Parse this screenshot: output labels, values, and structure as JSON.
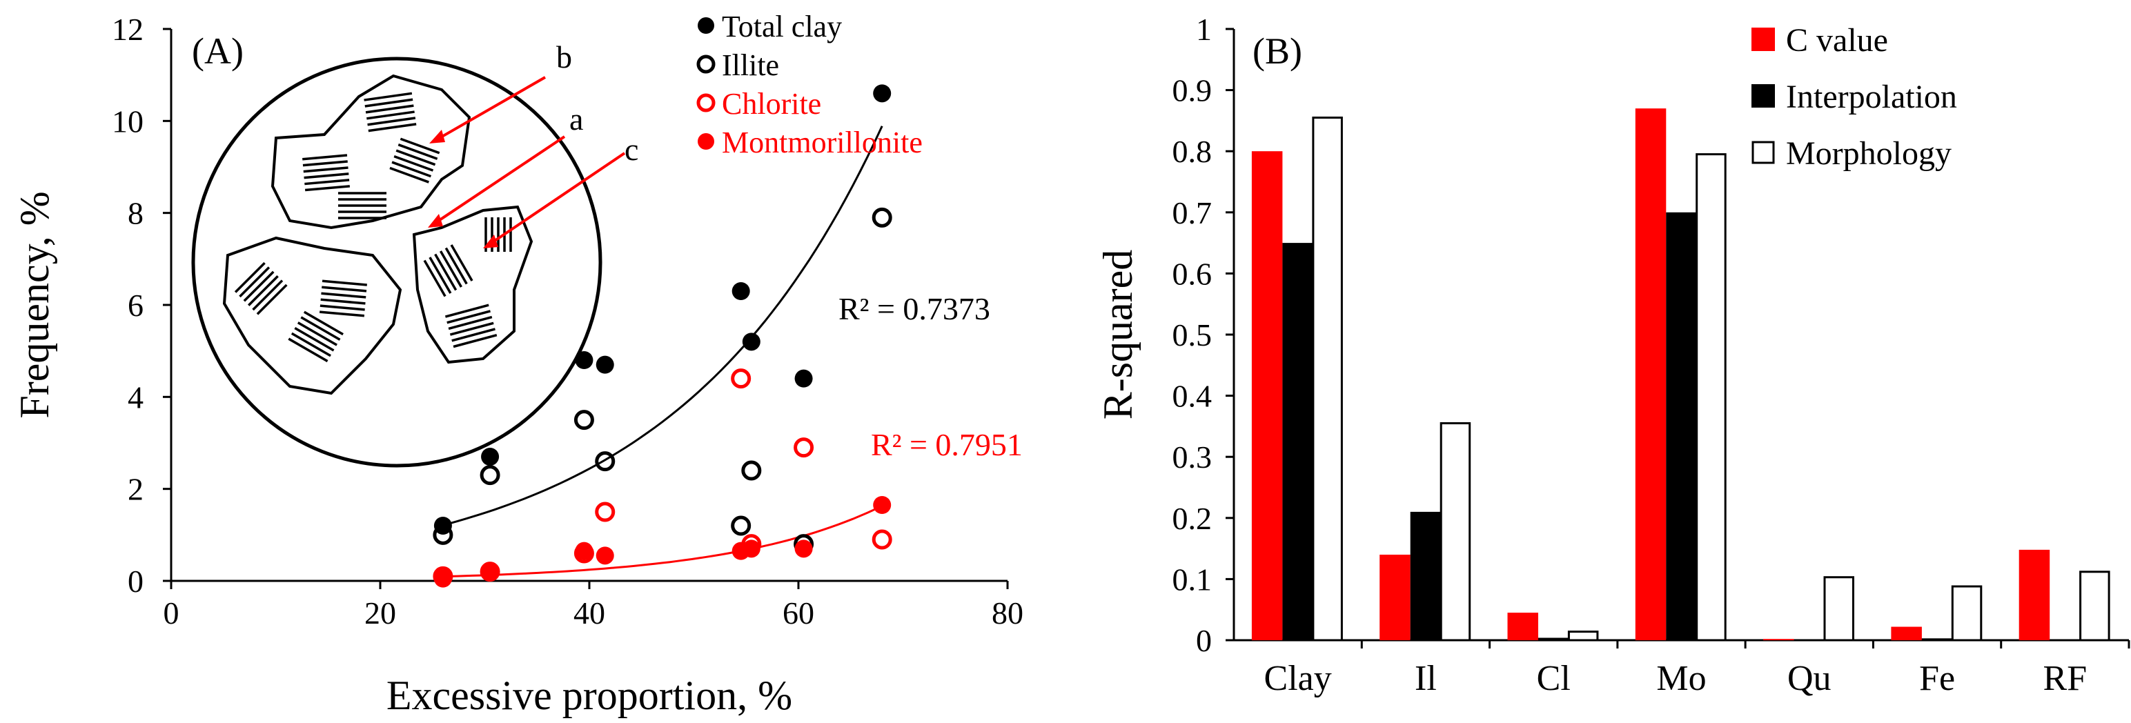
{
  "chart_data": [
    {
      "type": "scatter",
      "panel_label": "(A)",
      "xlabel": "Excessive proportion, %",
      "ylabel": "Frequency, %",
      "xlim": [
        0,
        80
      ],
      "ylim": [
        0,
        12
      ],
      "xticks": [
        "0",
        "20",
        "40",
        "60",
        "80"
      ],
      "yticks": [
        "0",
        "2",
        "4",
        "6",
        "8",
        "10",
        "12"
      ],
      "grid": false,
      "legend_position": "top-right",
      "x": [
        26,
        30.5,
        39.5,
        41.5,
        54.5,
        55.5,
        60.5,
        68
      ],
      "series": [
        {
          "name": "Total clay",
          "marker": "filled-circle",
          "color": "#000000",
          "values": [
            1.2,
            2.7,
            4.8,
            4.7,
            6.3,
            5.2,
            4.4,
            10.6
          ]
        },
        {
          "name": "Illite",
          "marker": "open-circle",
          "color": "#000000",
          "values": [
            1.0,
            2.3,
            3.5,
            2.6,
            1.2,
            2.4,
            0.8,
            7.9
          ]
        },
        {
          "name": "Chlorite",
          "marker": "open-circle",
          "color": "#ff0000",
          "values": [
            0.1,
            0.2,
            0.6,
            1.5,
            4.4,
            0.8,
            2.9,
            0.9
          ]
        },
        {
          "name": "Montmorillonite",
          "marker": "filled-circle",
          "color": "#ff0000",
          "values": [
            0.05,
            0.2,
            0.65,
            0.55,
            0.65,
            0.7,
            0.7,
            1.65
          ]
        }
      ],
      "trendlines": [
        {
          "series": "Total clay",
          "kind": "exponential",
          "a": 0.33,
          "b": 0.05,
          "x_range": [
            26,
            68
          ],
          "color": "#000000",
          "label": "R² = 0.7373"
        },
        {
          "series": "Montmorillonite",
          "kind": "exponential",
          "a": 0.016,
          "b": 0.068,
          "x_range": [
            26,
            68
          ],
          "color": "#ff0000",
          "label": "R² = 0.7951"
        }
      ],
      "inset": {
        "labels": [
          "b",
          "a",
          "c"
        ]
      }
    },
    {
      "type": "bar",
      "panel_label": "(B)",
      "xlabel": "",
      "ylabel": "R-squared",
      "ylim": [
        0,
        1
      ],
      "yticks": [
        "0",
        "0.1",
        "0.2",
        "0.3",
        "0.4",
        "0.5",
        "0.6",
        "0.7",
        "0.8",
        "0.9",
        "1"
      ],
      "grid": false,
      "legend_position": "top-right",
      "categories": [
        "Clay",
        "Il",
        "Cl",
        "Mo",
        "Qu",
        "Fe",
        "RF"
      ],
      "series": [
        {
          "name": "C value",
          "color": "#ff0000",
          "values": [
            0.8,
            0.14,
            0.045,
            0.87,
            0.002,
            0.022,
            0.148
          ]
        },
        {
          "name": "Interpolation",
          "color": "#000000",
          "values": [
            0.65,
            0.21,
            0.004,
            0.7,
            0.001,
            0.003,
            0.001
          ]
        },
        {
          "name": "Morphology",
          "color": "#ffffff",
          "values": [
            0.855,
            0.355,
            0.014,
            0.795,
            0.103,
            0.088,
            0.112
          ]
        }
      ]
    }
  ]
}
